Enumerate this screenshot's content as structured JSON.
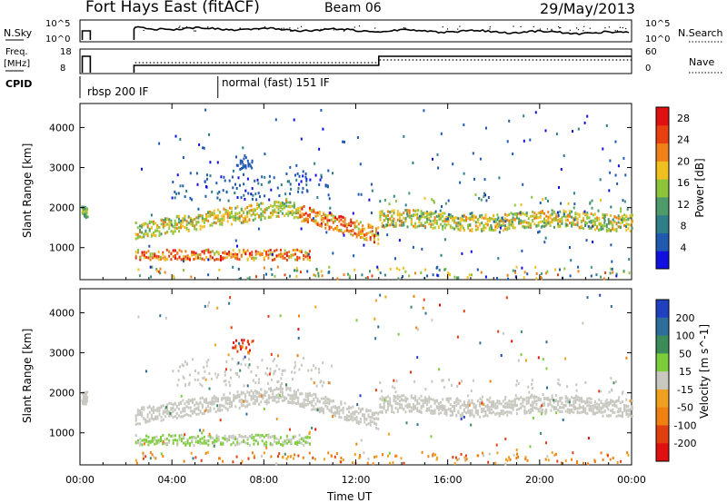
{
  "header": {
    "station": "Fort Hays East (fitACF)",
    "beam": "Beam 06",
    "date": "29/May/2013"
  },
  "panels": {
    "nsky": {
      "label": "N.Sky",
      "tick_top": "10^5",
      "tick_bottom": "10^0",
      "right_label": "N.Search"
    },
    "freq": {
      "label_line1": "Freq.",
      "label_line2": "[MHz]",
      "left_ticks": [
        "18",
        "8"
      ],
      "right_ticks": [
        "60",
        "0"
      ],
      "right_label": "Nave"
    },
    "cpid": {
      "label": "CPID",
      "segments": [
        "rbsp 200 IF",
        "normal (fast) 151 IF"
      ]
    }
  },
  "chart_data": [
    {
      "type": "heatmap",
      "ylabel": "Slant Range [km]",
      "xlabel": "",
      "x_ticks": [
        "00:00",
        "04:00",
        "08:00",
        "12:00",
        "16:00",
        "20:00",
        "00:00"
      ],
      "y_ticks": [
        1000,
        2000,
        3000,
        4000
      ],
      "ylim": [
        200,
        4600
      ],
      "xlim_hours": [
        0,
        24
      ],
      "colorbar": {
        "label": "Power [dB]",
        "ticks": [
          4,
          8,
          12,
          16,
          20,
          24,
          28
        ],
        "range": [
          0,
          30
        ],
        "colors": [
          "#1010e0",
          "#205ab0",
          "#2e7f88",
          "#4e9a6a",
          "#8cc43c",
          "#f0c020",
          "#f08018",
          "#e84010",
          "#e01010"
        ]
      }
    },
    {
      "type": "heatmap",
      "ylabel": "Slant Range [km]",
      "xlabel": "Time UT",
      "x_ticks": [
        "00:00",
        "04:00",
        "08:00",
        "12:00",
        "16:00",
        "20:00",
        "00:00"
      ],
      "y_ticks": [
        1000,
        2000,
        3000,
        4000
      ],
      "ylim": [
        200,
        4600
      ],
      "xlim_hours": [
        0,
        24
      ],
      "colorbar": {
        "label": "Velocity [m s^-1]",
        "ticks": [
          "200",
          "100",
          "50",
          "15",
          "-15",
          "-50",
          "-100",
          "-200"
        ],
        "colors": [
          "#2040c0",
          "#2e6e9a",
          "#3c8c5a",
          "#7ccc3c",
          "#c8c8c0",
          "#f0a020",
          "#f08010",
          "#e04010",
          "#e01010"
        ]
      }
    }
  ]
}
